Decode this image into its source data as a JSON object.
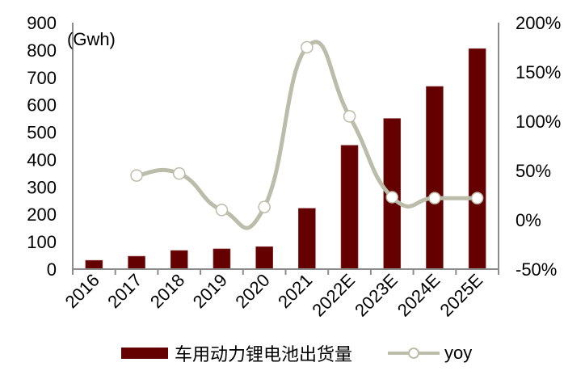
{
  "chart_data": {
    "type": "bar+line",
    "title": "",
    "categories": [
      "2016",
      "2017",
      "2018",
      "2019",
      "2020",
      "2021",
      "2022E",
      "2023E",
      "2024E",
      "2025E"
    ],
    "series": [
      {
        "name": "车用动力锂电池出货量",
        "type": "bar",
        "axis": "left",
        "color": "#640000",
        "values": [
          32,
          47,
          68,
          74,
          82,
          222,
          452,
          550,
          667,
          805
        ]
      },
      {
        "name": "yoy",
        "type": "line",
        "axis": "right",
        "color": "#bcbcaa",
        "values": [
          null,
          45,
          47,
          10,
          13,
          175,
          105,
          23,
          22,
          22
        ]
      }
    ],
    "left_axis": {
      "label": "(Gwh)",
      "ylim": [
        0,
        900
      ],
      "ticks": [
        "0",
        "100",
        "200",
        "300",
        "400",
        "500",
        "600",
        "700",
        "800",
        "900"
      ]
    },
    "right_axis": {
      "label": "",
      "ylim": [
        -50,
        200
      ],
      "ticks": [
        "-50%",
        "0%",
        "50%",
        "100%",
        "150%",
        "200%"
      ]
    },
    "xlabel": "",
    "grid": false,
    "legend_position": "bottom"
  },
  "legend": {
    "bar_label": "车用动力锂电池出货量",
    "line_label": "yoy"
  },
  "axis": {
    "unit_label": "(Gwh)"
  }
}
